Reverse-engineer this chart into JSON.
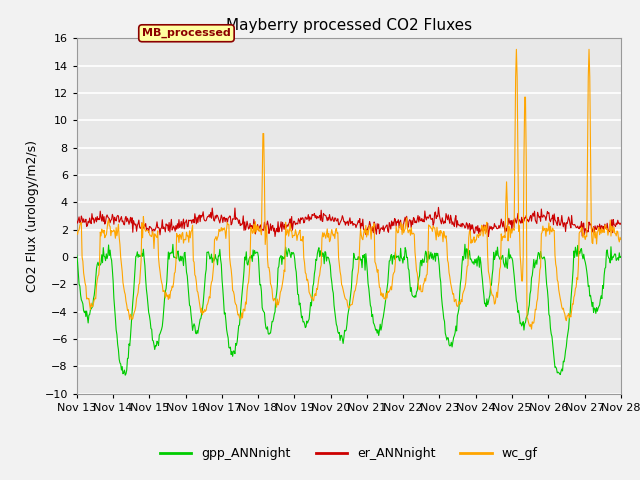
{
  "title": "Mayberry processed CO2 Fluxes",
  "ylabel": "CO2 Flux (urology/m2/s)",
  "ylim": [
    -10,
    16
  ],
  "yticks": [
    -10,
    -8,
    -6,
    -4,
    -2,
    0,
    2,
    4,
    6,
    8,
    10,
    12,
    14,
    16
  ],
  "xlim_days": [
    13,
    28
  ],
  "xtick_labels": [
    "Nov 13",
    "Nov 14",
    "Nov 15",
    "Nov 16",
    "Nov 17",
    "Nov 18",
    "Nov 19",
    "Nov 20",
    "Nov 21",
    "Nov 22",
    "Nov 23",
    "Nov 24",
    "Nov 25",
    "Nov 26",
    "Nov 27",
    "Nov 28"
  ],
  "legend_label": "MB_processed",
  "legend_label_color": "#8B0000",
  "legend_box_facecolor": "#FFFFA0",
  "legend_box_edgecolor": "#8B0000",
  "series": {
    "gpp_ANNnight": {
      "color": "#00CC00",
      "linewidth": 0.8
    },
    "er_ANNnight": {
      "color": "#CC0000",
      "linewidth": 0.8
    },
    "wc_gf": {
      "color": "#FFA500",
      "linewidth": 0.8
    }
  },
  "background_color": "#E8E8E8",
  "grid_color": "#FFFFFF",
  "title_fontsize": 11,
  "axis_fontsize": 9,
  "tick_fontsize": 8
}
